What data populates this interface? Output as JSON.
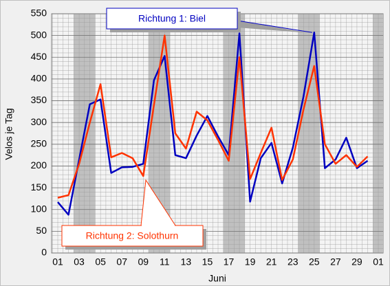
{
  "chart_data": {
    "type": "line",
    "categories": [
      "01",
      null,
      "03",
      null,
      "05",
      null,
      "07",
      null,
      "09",
      null,
      "11",
      null,
      "13",
      null,
      "15",
      null,
      "17",
      null,
      "19",
      null,
      "21",
      null,
      "23",
      null,
      "25",
      null,
      "27",
      null,
      "29",
      null,
      "01"
    ],
    "series": [
      {
        "name": "Richtung 1: Biel",
        "color": "#0000c0",
        "values": [
          117,
          88,
          215,
          342,
          353,
          184,
          197,
          198,
          205,
          397,
          453,
          225,
          218,
          270,
          315,
          268,
          225,
          505,
          118,
          218,
          253,
          160,
          242,
          360,
          507,
          195,
          215,
          265,
          195,
          212,
          null
        ]
      },
      {
        "name": "Richtung 2: Solothurn",
        "color": "#ff3300",
        "values": [
          127,
          133,
          205,
          300,
          388,
          220,
          230,
          218,
          177,
          340,
          500,
          275,
          240,
          325,
          305,
          260,
          212,
          450,
          170,
          230,
          288,
          168,
          215,
          330,
          430,
          250,
          205,
          225,
          198,
          222,
          null
        ]
      }
    ],
    "x_label": "Juni",
    "y_label": "Velos je Tag",
    "ylim": [
      0,
      550
    ],
    "yticks": [
      0,
      50,
      100,
      150,
      200,
      250,
      300,
      350,
      400,
      450,
      500,
      550
    ],
    "grid": true
  }
}
